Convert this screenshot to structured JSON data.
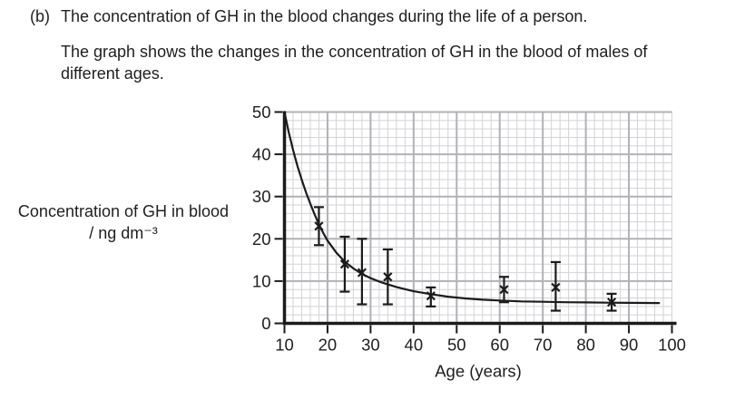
{
  "question": {
    "label": "(b)",
    "intro": "The concentration of GH in the blood changes during the life of a person.",
    "description": "The graph shows the changes in the concentration of GH in the blood of males of different ages."
  },
  "chart_data": {
    "type": "scatter",
    "title": "",
    "xlabel": "Age (years)",
    "ylabel_line1": "Concentration of GH in blood",
    "ylabel_line2": "/ ng dm⁻³",
    "xlim": [
      10,
      100
    ],
    "ylim": [
      0,
      50
    ],
    "x_ticks": [
      10,
      20,
      30,
      40,
      50,
      60,
      70,
      80,
      90,
      100
    ],
    "y_ticks": [
      0,
      10,
      20,
      30,
      40,
      50
    ],
    "x_minor_step": 2,
    "y_minor_step": 2,
    "grid": "minor and major gridlines on",
    "legend": "none",
    "points": [
      {
        "age": 18,
        "value": 23,
        "err_low": 18.5,
        "err_high": 27.5
      },
      {
        "age": 24,
        "value": 14,
        "err_low": 7.5,
        "err_high": 20.5
      },
      {
        "age": 28,
        "value": 12,
        "err_low": 4.5,
        "err_high": 20
      },
      {
        "age": 34,
        "value": 11,
        "err_low": 4.5,
        "err_high": 17.5
      },
      {
        "age": 44,
        "value": 6.5,
        "err_low": 4,
        "err_high": 8.5
      },
      {
        "age": 61,
        "value": 8,
        "err_low": 5,
        "err_high": 11
      },
      {
        "age": 73,
        "value": 8.5,
        "err_low": 3,
        "err_high": 14.5
      },
      {
        "age": 86,
        "value": 5,
        "err_low": 3,
        "err_high": 7
      }
    ],
    "curve": [
      [
        10,
        50
      ],
      [
        11,
        45.2
      ],
      [
        12,
        41
      ],
      [
        13,
        37.3
      ],
      [
        14,
        34
      ],
      [
        15,
        31
      ],
      [
        16,
        28.3
      ],
      [
        17,
        25.8
      ],
      [
        18,
        23.4
      ],
      [
        19,
        21.4
      ],
      [
        20,
        19.6
      ],
      [
        22,
        16.8
      ],
      [
        24,
        14.6
      ],
      [
        26,
        13.0
      ],
      [
        28,
        11.7
      ],
      [
        30,
        10.7
      ],
      [
        32,
        9.9
      ],
      [
        34,
        9.2
      ],
      [
        36,
        8.6
      ],
      [
        38,
        8.1
      ],
      [
        40,
        7.6
      ],
      [
        44,
        6.9
      ],
      [
        48,
        6.3
      ],
      [
        52,
        5.9
      ],
      [
        56,
        5.6
      ],
      [
        60,
        5.4
      ],
      [
        65,
        5.2
      ],
      [
        70,
        5.1
      ],
      [
        75,
        5.0
      ],
      [
        80,
        4.95
      ],
      [
        85,
        4.9
      ],
      [
        90,
        4.85
      ],
      [
        97,
        4.8
      ]
    ],
    "marker": "x-cross with vertical error bars",
    "colors": {
      "curve": "#1b1b1b",
      "axis": "#1b1b1b",
      "grid_minor": "#d3d3d7",
      "grid_major": "#b1b1b7",
      "text": "#1f1f1f"
    }
  }
}
